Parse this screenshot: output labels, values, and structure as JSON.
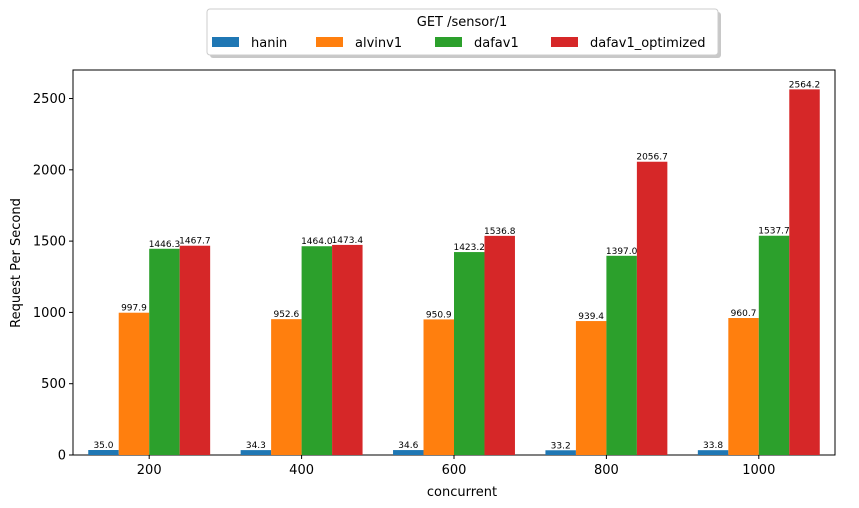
{
  "chart_data": {
    "type": "bar",
    "title": "",
    "xlabel": "concurrent",
    "ylabel": "Request Per Second",
    "ylim": [
      0,
      2700
    ],
    "yticks": [
      0,
      500,
      1000,
      1500,
      2000,
      2500
    ],
    "categories": [
      "200",
      "400",
      "600",
      "800",
      "1000"
    ],
    "grid": false,
    "legend": {
      "title": "GET /sensor/1",
      "placement": "top-center"
    },
    "series": [
      {
        "name": "hanin",
        "color": "#1f77b4",
        "values": [
          35.0,
          34.3,
          34.6,
          33.2,
          33.8
        ],
        "labels": [
          "35.0",
          "34.3",
          "34.6",
          "33.2",
          "33.8"
        ]
      },
      {
        "name": "alvinv1",
        "color": "#ff7f0e",
        "values": [
          997.9,
          952.6,
          950.9,
          939.4,
          960.7
        ],
        "labels": [
          "997.9",
          "952.6",
          "950.9",
          "939.4",
          "960.7"
        ]
      },
      {
        "name": "dafav1",
        "color": "#2ca02c",
        "values": [
          1446.3,
          1464.0,
          1423.2,
          1397.0,
          1537.7
        ],
        "labels": [
          "1446.3",
          "1464.0",
          "1423.2",
          "1397.0",
          "1537.7"
        ]
      },
      {
        "name": "dafav1_optimized",
        "color": "#d62728",
        "values": [
          1467.7,
          1473.4,
          1536.8,
          2056.7,
          2564.2
        ],
        "labels": [
          "1467.7",
          "1473.4",
          "1536.8",
          "2056.7",
          "2564.2"
        ]
      }
    ]
  }
}
